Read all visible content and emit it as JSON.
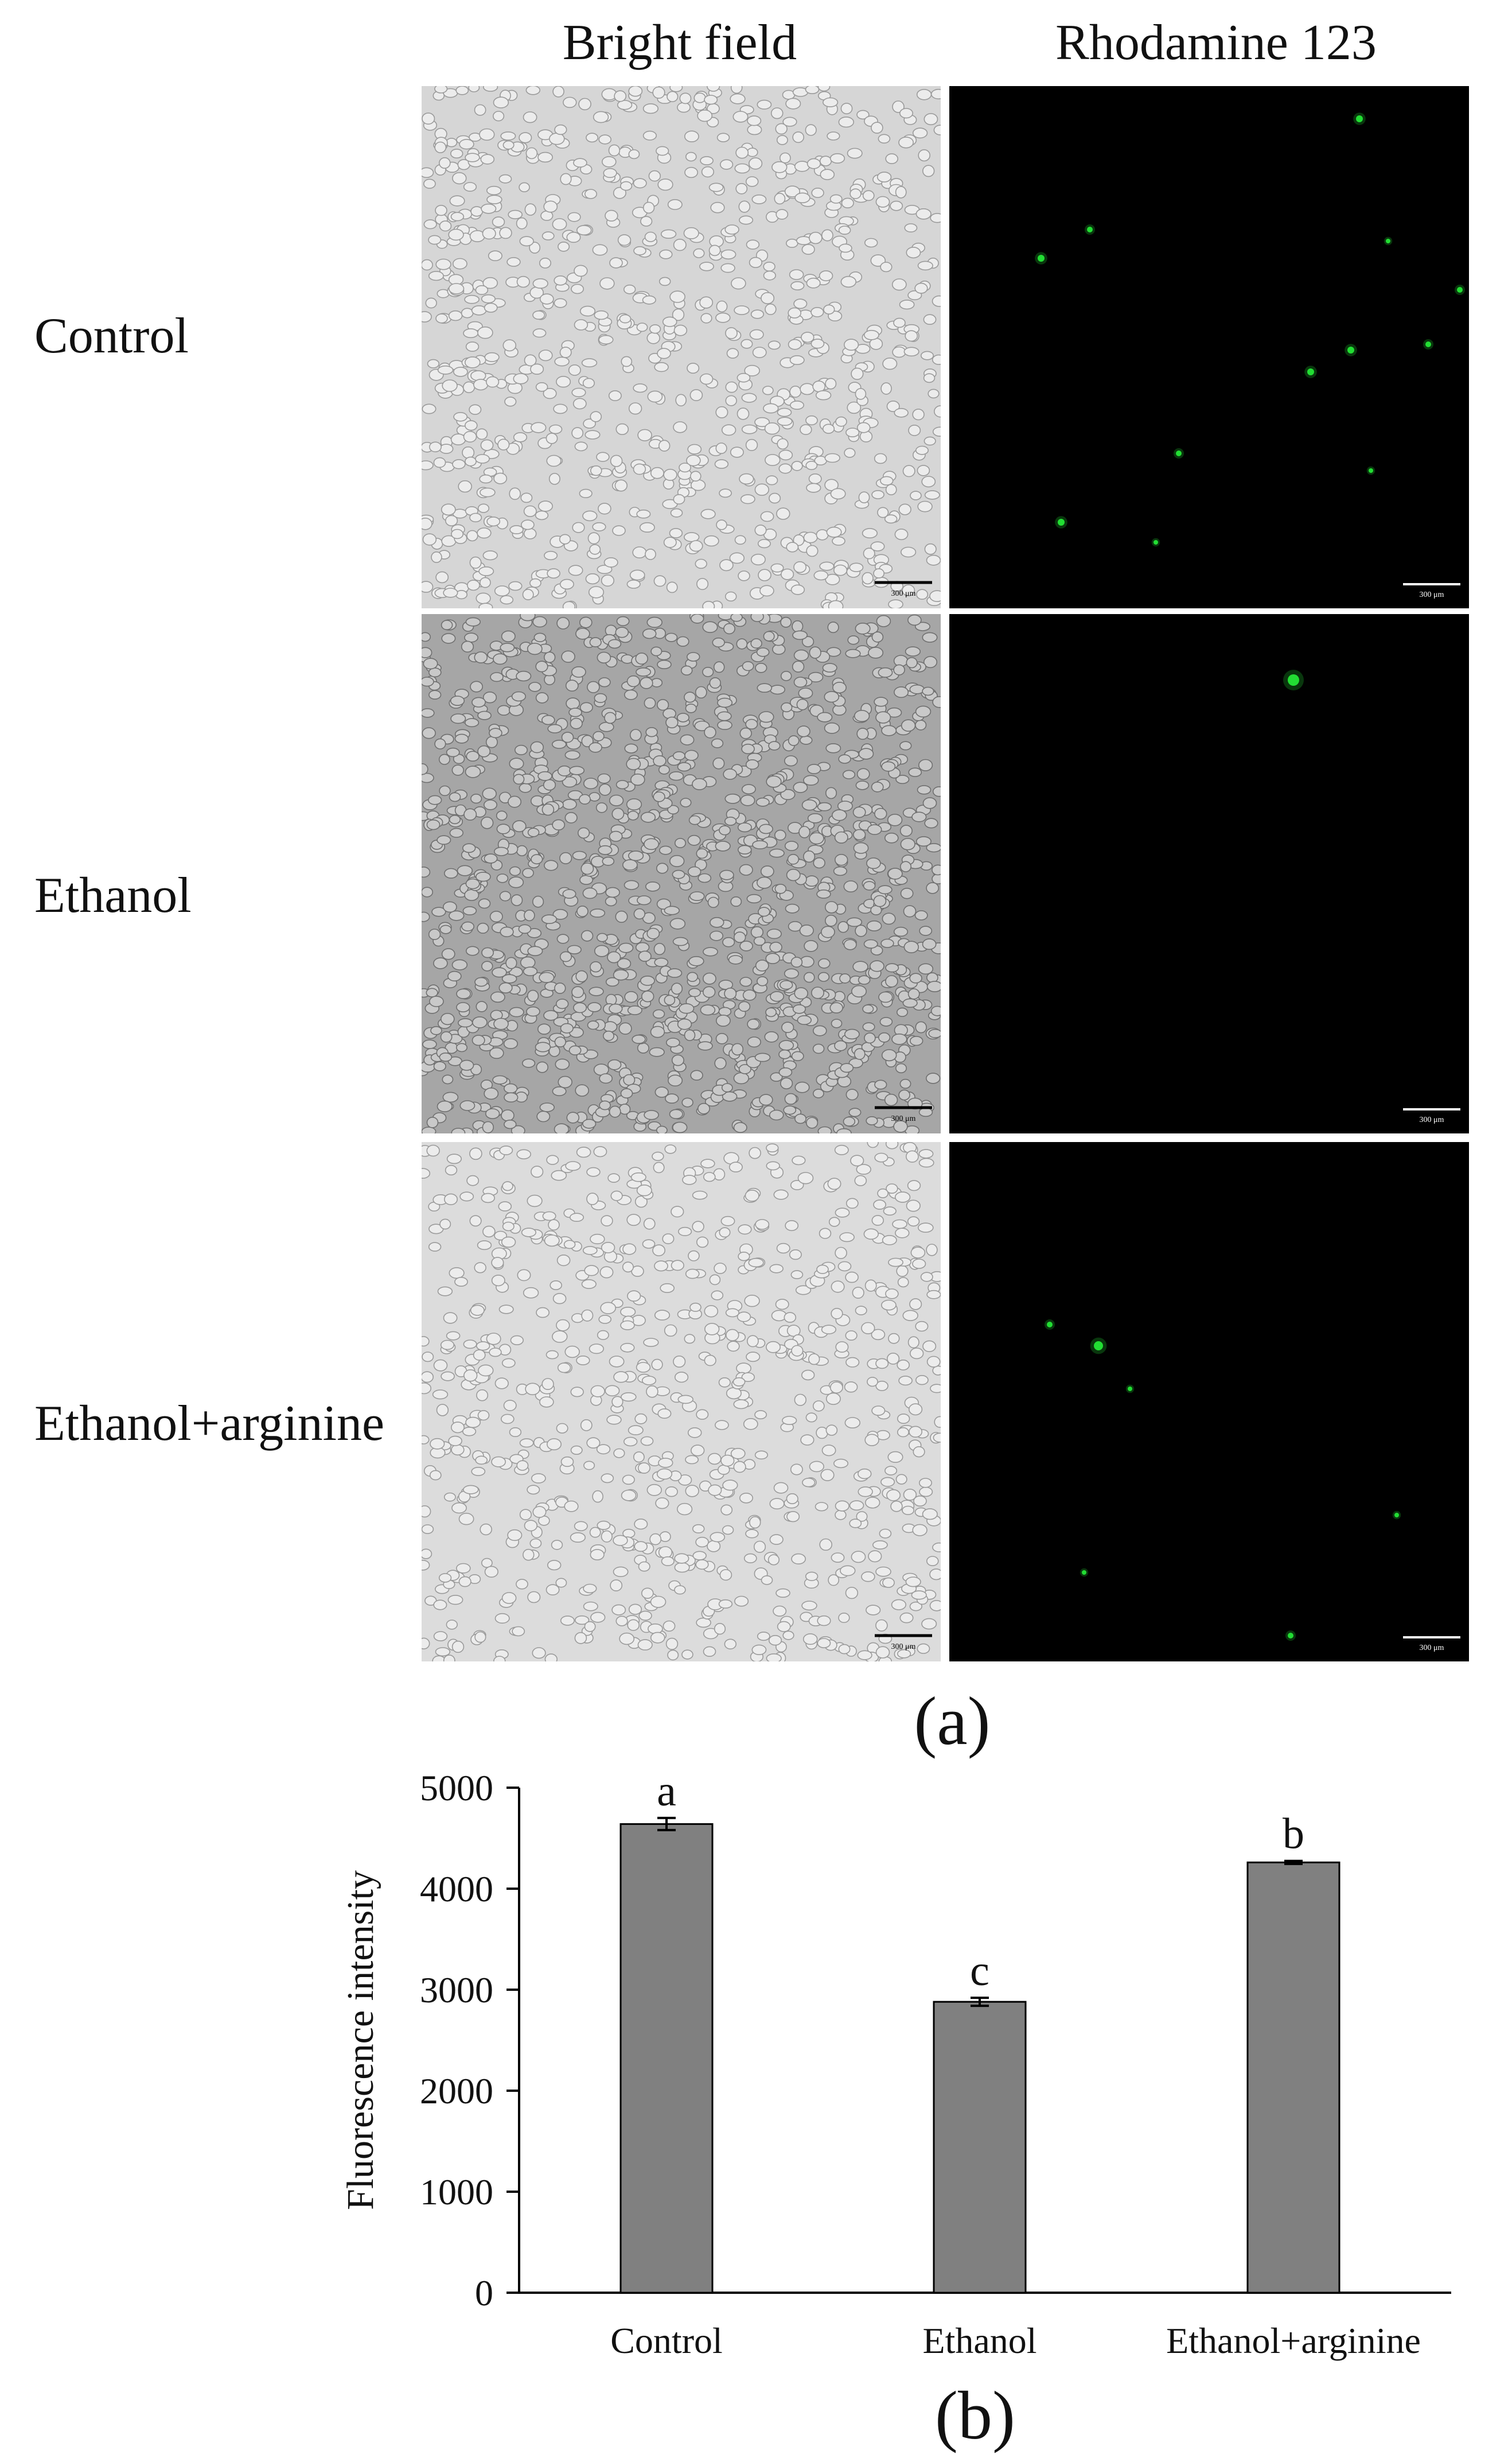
{
  "figure": {
    "columns": [
      "Bright field",
      "Rhodamine 123"
    ],
    "rows": [
      "Control",
      "Ethanol",
      "Ethanol+arginine"
    ],
    "scale_bar_label": "300 μm",
    "panel_a_label": "(a)",
    "panel_b_label": "(b)",
    "colors": {
      "control_bf": "#d6d6d6",
      "ethanol_bf": "#a6a6a6",
      "arginine_bf": "#dcdcdc",
      "fluorescence_bg": "#000000",
      "fluorescent_spot": "#22dd33",
      "bar_fill": "#808080"
    }
  },
  "chart_data": {
    "type": "bar",
    "categories": [
      "Control",
      "Ethanol",
      "Ethanol+arginine"
    ],
    "values": [
      4640,
      2880,
      4260
    ],
    "errors": [
      60,
      40,
      15
    ],
    "significance_letters": [
      "a",
      "c",
      "b"
    ],
    "title": "",
    "xlabel": "",
    "ylabel": "Fluorescence intensity",
    "ylim": [
      0,
      5000
    ],
    "yticks": [
      0,
      1000,
      2000,
      3000,
      4000,
      5000
    ],
    "grid": false,
    "legend": "none"
  }
}
